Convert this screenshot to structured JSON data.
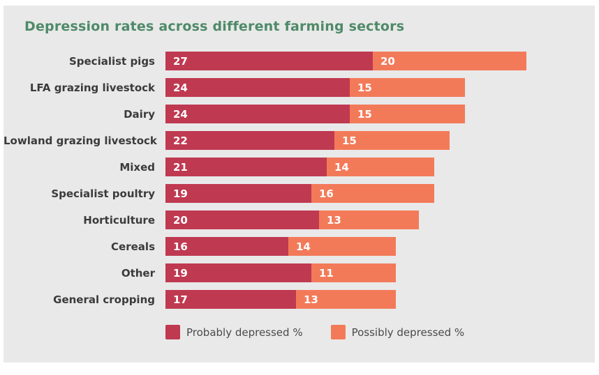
{
  "title": "Depression rates across different farming sectors",
  "colors": {
    "page_bg": "#ffffff",
    "card_bg": "#e9e9e9",
    "title_text": "#4e8a69",
    "category_text": "#3b3b3b",
    "value_text": "#ffffff",
    "legend_text": "#4a4a4a",
    "probably_depressed": "#bf3951",
    "possibly_depressed": "#f37a59"
  },
  "chart_data": {
    "type": "bar",
    "orientation": "horizontal",
    "stacked": true,
    "title": "Depression rates across different farming sectors",
    "xlabel": "",
    "ylabel": "",
    "xlim": [
      0,
      47
    ],
    "grid": false,
    "value_labels": "inside-start",
    "legend_position": "bottom",
    "categories": [
      "Specialist pigs",
      "LFA grazing livestock",
      "Dairy",
      "Lowland grazing livestock",
      "Mixed",
      "Specialist poultry",
      "Horticulture",
      "Cereals",
      "Other",
      "General cropping"
    ],
    "series": [
      {
        "name": "Probably depressed %",
        "color": "#bf3951",
        "values": [
          27,
          24,
          24,
          22,
          21,
          19,
          20,
          16,
          19,
          17
        ]
      },
      {
        "name": "Possibly depressed %",
        "color": "#f37a59",
        "values": [
          20,
          15,
          15,
          15,
          14,
          16,
          13,
          14,
          11,
          13
        ]
      }
    ]
  },
  "legend": {
    "items": [
      {
        "label": "Probably depressed %",
        "color": "#bf3951"
      },
      {
        "label": "Possibly depressed %",
        "color": "#f37a59"
      }
    ]
  }
}
